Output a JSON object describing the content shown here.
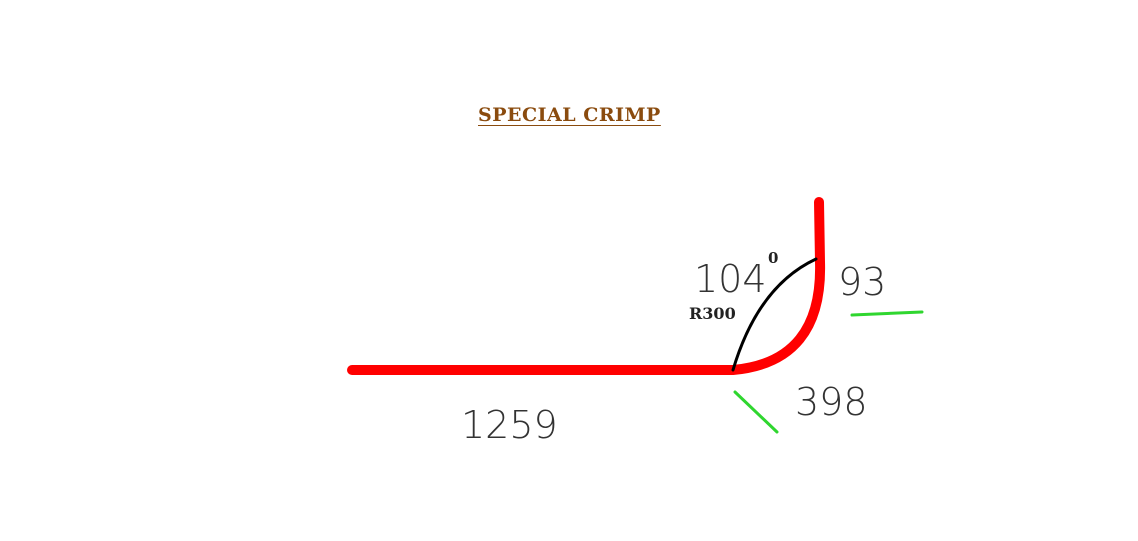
{
  "title": "SPECIAL  CRIMP",
  "dimensions": {
    "bottom_length": "1259",
    "angle_value": "104",
    "angle_unit": "0",
    "radius": "R300",
    "vertical_length": "93",
    "arc_length": "398"
  },
  "colors": {
    "profile": "#ff0000",
    "arc": "#000000",
    "indicator": "#2fd62f",
    "title": "#8a4b0e",
    "text": "#333333"
  }
}
